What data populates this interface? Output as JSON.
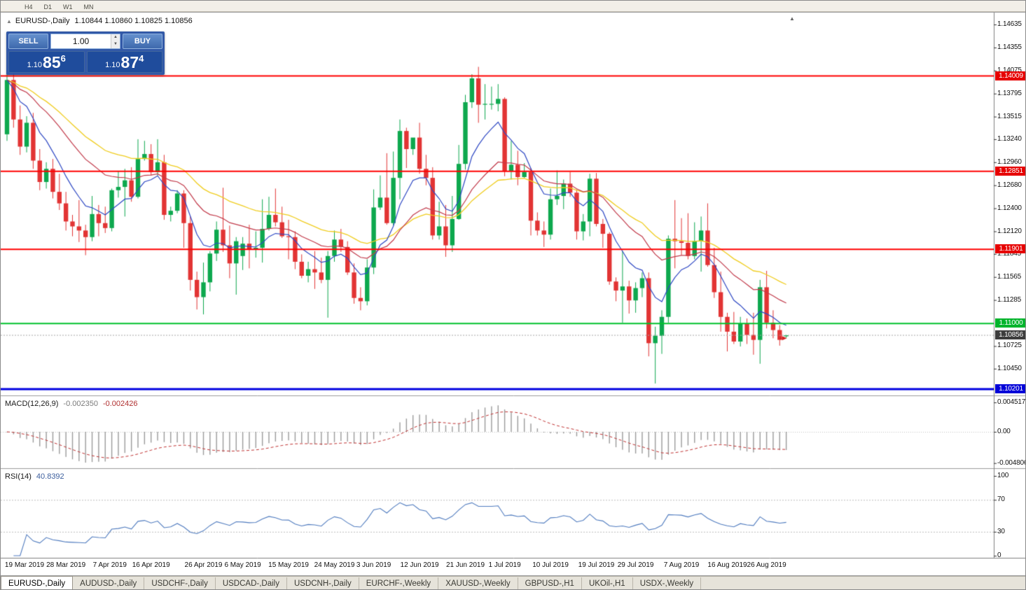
{
  "toolbar": {
    "timeframes": [
      "H4",
      "D1",
      "W1",
      "MN"
    ]
  },
  "chart_header": {
    "symbol": "EURUSD-,Daily",
    "ohlc": "1.10844 1.10860 1.10825 1.10856"
  },
  "one_click": {
    "sell_label": "SELL",
    "buy_label": "BUY",
    "volume": "1.00",
    "bid_prefix": "1.10",
    "bid_big": "85",
    "bid_sup": "6",
    "ask_prefix": "1.10",
    "ask_big": "87",
    "ask_sup": "4"
  },
  "levels": {
    "r1": "1.14009",
    "r2": "1.12851",
    "r3": "1.11901",
    "support_green": "1.11000",
    "current_price": "1.10856",
    "support_blue": "1.10201"
  },
  "price_axis": {
    "ticks": [
      "1.14635",
      "1.14355",
      "1.14075",
      "1.13795",
      "1.13515",
      "1.13240",
      "1.12960",
      "1.12680",
      "1.12400",
      "1.12120",
      "1.11845",
      "1.11565",
      "1.11285",
      "1.10725",
      "1.10450"
    ]
  },
  "date_axis": {
    "labels": [
      {
        "text": "19 Mar 2019",
        "i": 2
      },
      {
        "text": "28 Mar 2019",
        "i": 9
      },
      {
        "text": "7 Apr 2019",
        "i": 15.7
      },
      {
        "text": "16 Apr 2019",
        "i": 22
      },
      {
        "text": "26 Apr 2019",
        "i": 30
      },
      {
        "text": "6 May 2019",
        "i": 36
      },
      {
        "text": "15 May 2019",
        "i": 43
      },
      {
        "text": "24 May 2019",
        "i": 50
      },
      {
        "text": "3 Jun 2019",
        "i": 56
      },
      {
        "text": "12 Jun 2019",
        "i": 63
      },
      {
        "text": "21 Jun 2019",
        "i": 70
      },
      {
        "text": "1 Jul 2019",
        "i": 76
      },
      {
        "text": "10 Jul 2019",
        "i": 83
      },
      {
        "text": "19 Jul 2019",
        "i": 90
      },
      {
        "text": "29 Jul 2019",
        "i": 96
      },
      {
        "text": "7 Aug 2019",
        "i": 103
      },
      {
        "text": "16 Aug 2019",
        "i": 110
      },
      {
        "text": "26 Aug 2019",
        "i": 116
      }
    ]
  },
  "macd": {
    "name": "MACD(12,26,9)",
    "value_main": "-0.002350",
    "value_signal": "-0.002426",
    "axis_max": "0.004517",
    "axis_zero": "0.00",
    "axis_min": "-0.004806"
  },
  "rsi": {
    "name": "RSI(14)",
    "value": "40.8392",
    "axis": [
      "100",
      "70",
      "30",
      "0"
    ]
  },
  "tabs": [
    "EURUSD-,Daily",
    "AUDUSD-,Daily",
    "USDCHF-,Daily",
    "USDCAD-,Daily",
    "USDCNH-,Daily",
    "EURCHF-,Weekly",
    "XAUUSD-,Weekly",
    "GBPUSD-,H1",
    "UKOil-,H1",
    "USDX-,Weekly"
  ],
  "chart_data": {
    "type": "candlestick",
    "symbol": "EURUSD",
    "timeframe": "Daily",
    "moving_average_periods": [
      8,
      21,
      34
    ],
    "macd_params": [
      12,
      26,
      9
    ],
    "rsi_period": 14,
    "current_price": 1.10856,
    "hlines": [
      {
        "price": 1.14009,
        "color": "#FF0000",
        "width": 2
      },
      {
        "price": 1.12851,
        "color": "#FF0000",
        "width": 2
      },
      {
        "price": 1.11901,
        "color": "#FF0000",
        "width": 2
      },
      {
        "price": 1.11,
        "color": "#00C22C",
        "width": 2
      },
      {
        "price": 1.10201,
        "color": "#0000E0",
        "width": 3
      }
    ],
    "marker": {
      "index": 119,
      "price": 1.1082,
      "color": "#D22222",
      "type": "sell-arrow"
    },
    "colors": {
      "bull": "#0DA84E",
      "bear": "#E23434",
      "ma_fast": "#2F49C4",
      "ma_mid": "#C23A4A",
      "ma_slow": "#F0CD1E",
      "macd_hist": "#9B9B9B",
      "macd_signal": "#C03030",
      "rsi": "#4F7BBF"
    },
    "candles": [
      [
        1.133,
        1.1404,
        1.1322,
        1.1396
      ],
      [
        1.1396,
        1.1404,
        1.1338,
        1.1348
      ],
      [
        1.1348,
        1.1365,
        1.1305,
        1.1315
      ],
      [
        1.1315,
        1.1352,
        1.1308,
        1.1344
      ],
      [
        1.1344,
        1.1356,
        1.1288,
        1.1298
      ],
      [
        1.1298,
        1.1312,
        1.1262,
        1.1272
      ],
      [
        1.1272,
        1.1296,
        1.1264,
        1.1288
      ],
      [
        1.1288,
        1.13,
        1.1252,
        1.126
      ],
      [
        1.126,
        1.1282,
        1.1238,
        1.1246
      ],
      [
        1.1246,
        1.126,
        1.1213,
        1.1224
      ],
      [
        1.1224,
        1.1232,
        1.1206,
        1.1218
      ],
      [
        1.1218,
        1.125,
        1.1199,
        1.1213
      ],
      [
        1.1213,
        1.122,
        1.1183,
        1.1205
      ],
      [
        1.1205,
        1.1255,
        1.12,
        1.1233
      ],
      [
        1.1233,
        1.1244,
        1.1206,
        1.1222
      ],
      [
        1.1222,
        1.1242,
        1.121,
        1.1216
      ],
      [
        1.1216,
        1.1264,
        1.1212,
        1.1262
      ],
      [
        1.1262,
        1.1285,
        1.1253,
        1.1266
      ],
      [
        1.1266,
        1.1288,
        1.123,
        1.1274
      ],
      [
        1.1274,
        1.129,
        1.1248,
        1.1254
      ],
      [
        1.1254,
        1.1324,
        1.1252,
        1.13
      ],
      [
        1.13,
        1.1322,
        1.1298,
        1.1306
      ],
      [
        1.1306,
        1.1318,
        1.128,
        1.1284
      ],
      [
        1.1284,
        1.1324,
        1.128,
        1.1296
      ],
      [
        1.1296,
        1.1305,
        1.1226,
        1.1232
      ],
      [
        1.1232,
        1.1242,
        1.1224,
        1.1237
      ],
      [
        1.1237,
        1.1262,
        1.1234,
        1.1258
      ],
      [
        1.1258,
        1.1262,
        1.1192,
        1.1222
      ],
      [
        1.1222,
        1.123,
        1.114,
        1.1153
      ],
      [
        1.1153,
        1.1163,
        1.1117,
        1.1132
      ],
      [
        1.1132,
        1.1174,
        1.1111,
        1.115
      ],
      [
        1.115,
        1.1188,
        1.1139,
        1.1185
      ],
      [
        1.1185,
        1.1224,
        1.1176,
        1.1214
      ],
      [
        1.1214,
        1.1265,
        1.1187,
        1.1195
      ],
      [
        1.1195,
        1.1219,
        1.1155,
        1.1173
      ],
      [
        1.1173,
        1.1205,
        1.1135,
        1.12
      ],
      [
        1.1182,
        1.1205,
        1.1165,
        1.1197
      ],
      [
        1.1197,
        1.122,
        1.1167,
        1.119
      ],
      [
        1.119,
        1.1212,
        1.118,
        1.1192
      ],
      [
        1.1192,
        1.1251,
        1.1174,
        1.1215
      ],
      [
        1.1215,
        1.1254,
        1.1213,
        1.1232
      ],
      [
        1.1232,
        1.1264,
        1.1218,
        1.1223
      ],
      [
        1.1223,
        1.1242,
        1.1204,
        1.1206
      ],
      [
        1.1206,
        1.1226,
        1.1178,
        1.1205
      ],
      [
        1.1205,
        1.1212,
        1.1166,
        1.1175
      ],
      [
        1.1175,
        1.1184,
        1.1155,
        1.1158
      ],
      [
        1.1158,
        1.1175,
        1.115,
        1.1166
      ],
      [
        1.1166,
        1.1188,
        1.1142,
        1.1162
      ],
      [
        1.1162,
        1.118,
        1.1149,
        1.1153
      ],
      [
        1.1153,
        1.1188,
        1.1107,
        1.1182
      ],
      [
        1.1182,
        1.1213,
        1.1175,
        1.1202
      ],
      [
        1.1202,
        1.1215,
        1.1187,
        1.1193
      ],
      [
        1.1193,
        1.12,
        1.1159,
        1.1162
      ],
      [
        1.1162,
        1.1173,
        1.1124,
        1.1131
      ],
      [
        1.1131,
        1.1144,
        1.1116,
        1.1127
      ],
      [
        1.1127,
        1.1178,
        1.1122,
        1.1168
      ],
      [
        1.1168,
        1.1263,
        1.116,
        1.1241
      ],
      [
        1.1241,
        1.128,
        1.1238,
        1.1253
      ],
      [
        1.1253,
        1.1307,
        1.122,
        1.1222
      ],
      [
        1.1222,
        1.1309,
        1.1219,
        1.1277
      ],
      [
        1.1277,
        1.1348,
        1.1251,
        1.1334
      ],
      [
        1.1334,
        1.1338,
        1.1289,
        1.1312
      ],
      [
        1.1312,
        1.1325,
        1.1305,
        1.1326
      ],
      [
        1.1326,
        1.1344,
        1.1282,
        1.1288
      ],
      [
        1.1288,
        1.1305,
        1.1268,
        1.1277
      ],
      [
        1.1277,
        1.129,
        1.1202,
        1.1207
      ],
      [
        1.1207,
        1.1248,
        1.1202,
        1.1218
      ],
      [
        1.1218,
        1.1244,
        1.1181,
        1.1195
      ],
      [
        1.1195,
        1.1255,
        1.1187,
        1.1227
      ],
      [
        1.1227,
        1.1317,
        1.1226,
        1.1294
      ],
      [
        1.1294,
        1.1378,
        1.1287,
        1.1369
      ],
      [
        1.1369,
        1.1403,
        1.1362,
        1.1398
      ],
      [
        1.1398,
        1.1412,
        1.1344,
        1.1366
      ],
      [
        1.1366,
        1.1391,
        1.1348,
        1.1367
      ],
      [
        1.1367,
        1.1388,
        1.136,
        1.1367
      ],
      [
        1.1367,
        1.1391,
        1.1358,
        1.1373
      ],
      [
        1.1373,
        1.1375,
        1.1279,
        1.1285
      ],
      [
        1.1285,
        1.1322,
        1.1275,
        1.1293
      ],
      [
        1.1293,
        1.131,
        1.1268,
        1.1278
      ],
      [
        1.1278,
        1.1295,
        1.1277,
        1.1284
      ],
      [
        1.1284,
        1.1289,
        1.1207,
        1.1225
      ],
      [
        1.1225,
        1.1235,
        1.1207,
        1.1213
      ],
      [
        1.1213,
        1.1224,
        1.1193,
        1.1208
      ],
      [
        1.1208,
        1.1264,
        1.1202,
        1.1251
      ],
      [
        1.1251,
        1.1286,
        1.1244,
        1.1255
      ],
      [
        1.1255,
        1.1275,
        1.1239,
        1.127
      ],
      [
        1.127,
        1.1284,
        1.1254,
        1.1259
      ],
      [
        1.1259,
        1.1263,
        1.1202,
        1.1212
      ],
      [
        1.1212,
        1.1233,
        1.1201,
        1.1224
      ],
      [
        1.1224,
        1.1282,
        1.1206,
        1.1276
      ],
      [
        1.1276,
        1.1283,
        1.1218,
        1.1221
      ],
      [
        1.1221,
        1.1227,
        1.1192,
        1.1209
      ],
      [
        1.1209,
        1.1211,
        1.1147,
        1.1151
      ],
      [
        1.1151,
        1.1156,
        1.1127,
        1.114
      ],
      [
        1.114,
        1.1188,
        1.1101,
        1.1145
      ],
      [
        1.1145,
        1.1152,
        1.1112,
        1.1128
      ],
      [
        1.1128,
        1.115,
        1.1113,
        1.1143
      ],
      [
        1.1143,
        1.1162,
        1.1132,
        1.1155
      ],
      [
        1.1155,
        1.1162,
        1.106,
        1.1076
      ],
      [
        1.1076,
        1.1096,
        1.1027,
        1.1085
      ],
      [
        1.1085,
        1.1116,
        1.1063,
        1.1108
      ],
      [
        1.1108,
        1.1207,
        1.1101,
        1.1203
      ],
      [
        1.1203,
        1.125,
        1.1167,
        1.12
      ],
      [
        1.12,
        1.1228,
        1.1183,
        1.1198
      ],
      [
        1.1198,
        1.1234,
        1.1178,
        1.1182
      ],
      [
        1.1182,
        1.1223,
        1.1178,
        1.12
      ],
      [
        1.12,
        1.123,
        1.1163,
        1.1213
      ],
      [
        1.1213,
        1.1246,
        1.1169,
        1.1171
      ],
      [
        1.1171,
        1.1192,
        1.1131,
        1.1138
      ],
      [
        1.1138,
        1.1163,
        1.109,
        1.1108
      ],
      [
        1.1108,
        1.1113,
        1.1066,
        1.109
      ],
      [
        1.109,
        1.1114,
        1.1075,
        1.1078
      ],
      [
        1.1078,
        1.1108,
        1.1072,
        1.11
      ],
      [
        1.11,
        1.1106,
        1.1075,
        1.1086
      ],
      [
        1.1086,
        1.1113,
        1.1062,
        1.108
      ],
      [
        1.108,
        1.1153,
        1.1051,
        1.1144
      ],
      [
        1.1144,
        1.1164,
        1.1094,
        1.1101
      ],
      [
        1.1101,
        1.1116,
        1.1082,
        1.1092
      ],
      [
        1.1092,
        1.1098,
        1.1073,
        1.108
      ],
      [
        1.10844,
        1.1086,
        1.10825,
        1.10856
      ]
    ]
  }
}
